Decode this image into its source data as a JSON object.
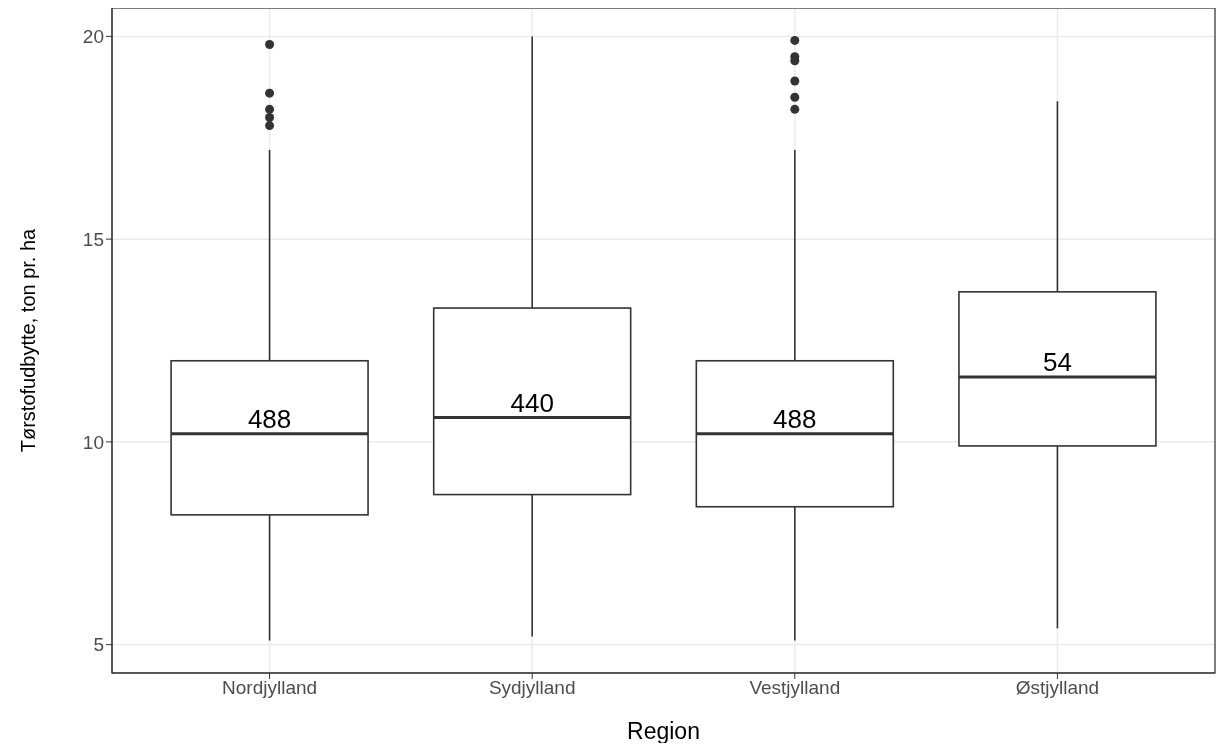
{
  "chart_data": {
    "type": "box",
    "xlabel": "Region",
    "ylabel": "Tørstofudbytte, ton pr. ha",
    "categories": [
      "Nordjylland",
      "Sydjylland",
      "Vestjylland",
      "Østjylland"
    ],
    "boxes": [
      {
        "low": 5.1,
        "q1": 8.2,
        "median": 10.2,
        "q3": 12.0,
        "high": 17.2,
        "outliers": [
          19.8,
          18.6,
          18.2,
          18.0,
          17.8
        ]
      },
      {
        "low": 5.2,
        "q1": 8.7,
        "median": 10.6,
        "q3": 13.3,
        "high": 20.0
      },
      {
        "low": 5.1,
        "q1": 8.4,
        "median": 10.2,
        "q3": 12.0,
        "high": 17.2,
        "outliers": [
          19.9,
          19.5,
          19.4,
          18.9,
          18.5,
          18.2
        ]
      },
      {
        "low": 5.4,
        "q1": 9.9,
        "median": 11.6,
        "q3": 13.7,
        "high": 18.4
      }
    ],
    "color": "#333333",
    "ylim": [
      4.3,
      20.7
    ],
    "yticks": [
      5,
      10,
      15,
      20
    ],
    "grid": true,
    "annotations": [
      {
        "text": "488",
        "x": "Nordjylland",
        "y": 10.2
      },
      {
        "text": "440",
        "x": "Sydjylland",
        "y": 10.6
      },
      {
        "text": "488",
        "x": "Vestjylland",
        "y": 10.2
      },
      {
        "text": "54",
        "x": "Østjylland",
        "y": 11.6
      }
    ]
  }
}
